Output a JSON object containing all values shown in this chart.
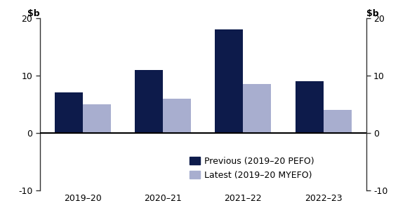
{
  "categories": [
    "2019–20",
    "2020–21",
    "2021–22",
    "2022–23"
  ],
  "previous_values": [
    7.0,
    11.0,
    18.0,
    9.0
  ],
  "latest_values": [
    5.0,
    6.0,
    8.5,
    4.0
  ],
  "previous_color": "#0d1b4b",
  "latest_color": "#a8aecf",
  "ylim": [
    -10,
    20
  ],
  "yticks": [
    -10,
    0,
    10,
    20
  ],
  "legend_previous": "Previous (2019–20 PEFO)",
  "legend_latest": "Latest (2019–20 MYEFO)",
  "bar_width": 0.35,
  "background_color": "#ffffff",
  "axis_color": "#000000",
  "tick_label_fontsize": 9,
  "ylabel_fontsize": 9,
  "legend_fontsize": 9
}
